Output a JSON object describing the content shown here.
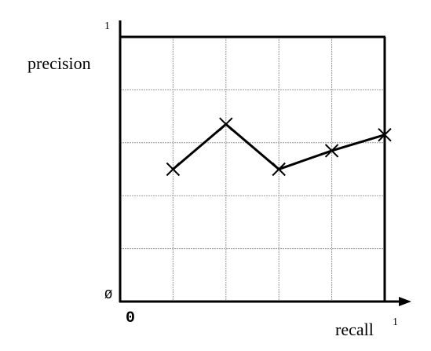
{
  "chart_data": {
    "type": "line",
    "ylabel": "precision",
    "xlabel": "recall",
    "x_ticks": {
      "start": "0",
      "end": "1"
    },
    "y_ticks": {
      "start": "Ø",
      "end": "1"
    },
    "xlim": [
      0,
      1
    ],
    "ylim": [
      0,
      1
    ],
    "grid": true,
    "series": [
      {
        "points": [
          {
            "x": 0.2,
            "y": 0.5
          },
          {
            "x": 0.4,
            "y": 0.67
          },
          {
            "x": 0.6,
            "y": 0.5
          },
          {
            "x": 0.8,
            "y": 0.57
          },
          {
            "x": 1.0,
            "y": 0.63
          }
        ]
      }
    ],
    "colors": {
      "line": "#000000",
      "grid": "#9a9a9a"
    }
  }
}
